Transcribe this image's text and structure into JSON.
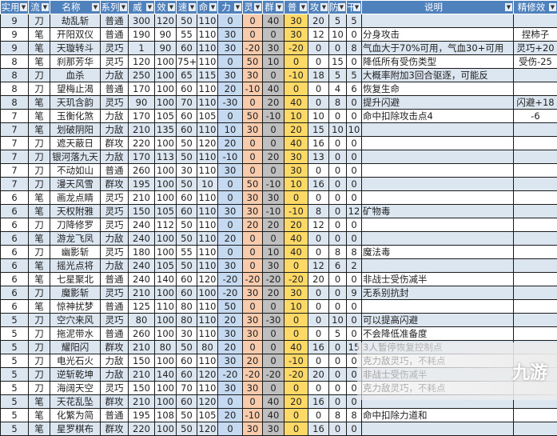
{
  "headers": [
    "实用",
    "流",
    "名称",
    "系列",
    "威",
    "效",
    "速",
    "命",
    "力",
    "灵",
    "群",
    "普",
    "攻",
    "防",
    "干",
    "说明",
    "精修效"
  ],
  "rows": [
    [
      "9",
      "刀",
      "劫乱斩",
      "普通",
      "300",
      "120",
      "50",
      "110",
      "0",
      "0",
      "40",
      "30",
      "20",
      "5",
      "5",
      "",
      ""
    ],
    [
      "9",
      "笔",
      "开阳双仪",
      "普通",
      "190",
      "90",
      "55",
      "110",
      "30",
      "0",
      "0",
      "30",
      "12",
      "10",
      "0",
      "分身攻击",
      "捏柿子"
    ],
    [
      "9",
      "笔",
      "天璇转斗",
      "灵巧",
      "1",
      "90",
      "60",
      "110",
      "30",
      "-20",
      "30",
      "-20",
      "0",
      "0",
      "8",
      "气血大于70%可用，气血30+可用",
      "灵巧+20"
    ],
    [
      "8",
      "笔",
      "刹那芳华",
      "灵巧",
      "120",
      "100",
      "75+",
      "110",
      "0",
      "50",
      "10",
      "0",
      "0",
      "15",
      "0",
      "降低所有受伤类型",
      "受伤-25"
    ],
    [
      "8",
      "刀",
      "血杀",
      "力敌",
      "250",
      "100",
      "65",
      "115",
      "30",
      "30",
      "0",
      "-10",
      "18",
      "5",
      "5",
      "大概率附加3回合驱逐，可能反",
      ""
    ],
    [
      "8",
      "刀",
      "望梅止渴",
      "普通",
      "170",
      "100",
      "60",
      "110",
      "20",
      "-10",
      "40",
      "0",
      "0",
      "4",
      "6",
      "恢复生命",
      ""
    ],
    [
      "8",
      "笔",
      "天玑含韵",
      "灵巧",
      "90",
      "100",
      "70",
      "110",
      "-30",
      "0",
      "20",
      "40",
      "0",
      "8",
      "0",
      "提升闪避",
      "闪避+18"
    ],
    [
      "7",
      "笔",
      "玉衡化煞",
      "力敌",
      "170",
      "105",
      "60",
      "105",
      "0",
      "50",
      "-10",
      "10",
      "10",
      "0",
      "0",
      "命中扣除攻击点4",
      "-6"
    ],
    [
      "7",
      "笔",
      "划破阴阳",
      "力敌",
      "210",
      "135",
      "60",
      "110",
      "10",
      "30",
      "0",
      "20",
      "15",
      "10",
      "10",
      "",
      ""
    ],
    [
      "7",
      "刀",
      "遮天蔽日",
      "群攻",
      "220",
      "100",
      "50",
      "120",
      "20",
      "0",
      "0",
      "40",
      "16",
      "0",
      "0",
      "",
      ""
    ],
    [
      "7",
      "刀",
      "银河落九天",
      "力敌",
      "170",
      "113",
      "50",
      "110",
      "-10",
      "0",
      "20",
      "30",
      "13",
      "0",
      "0",
      "",
      ""
    ],
    [
      "7",
      "刀",
      "不动如山",
      "普通",
      "260",
      "100",
      "30",
      "110",
      "30",
      "0",
      "0",
      "30",
      "0",
      "0",
      "0",
      "",
      ""
    ],
    [
      "7",
      "刀",
      "漫天风雪",
      "群攻",
      "195",
      "100",
      "50",
      "10",
      "0",
      "50",
      "-10",
      "10",
      "16",
      "0",
      "0",
      "",
      ""
    ],
    [
      "6",
      "笔",
      "画龙点睛",
      "灵巧",
      "210",
      "100",
      "60",
      "110",
      "0",
      "30",
      "30",
      "0",
      "0",
      "0",
      "0",
      "",
      ""
    ],
    [
      "6",
      "笔",
      "天权附雅",
      "灵巧",
      "150",
      "105",
      "60",
      "110",
      "30",
      "30",
      "-10",
      "-10",
      "8",
      "0",
      "12",
      "矿物毒",
      ""
    ],
    [
      "6",
      "刀",
      "刀降修罗",
      "灵巧",
      "240",
      "112",
      "50",
      "110",
      "0",
      "20",
      "20",
      "20",
      "12",
      "0",
      "0",
      "",
      ""
    ],
    [
      "6",
      "笔",
      "游龙飞凤",
      "力敌",
      "240",
      "100",
      "50",
      "110",
      "20",
      "0",
      "0",
      "40",
      "0",
      "0",
      "0",
      "",
      ""
    ],
    [
      "6",
      "刀",
      "幽影斩",
      "灵巧",
      "180",
      "100",
      "55",
      "110",
      "0",
      "0",
      "10",
      "40",
      "0",
      "8",
      "8",
      "魔法毒",
      ""
    ],
    [
      "6",
      "笔",
      "摇光点将",
      "力敌",
      "240",
      "105",
      "50",
      "110",
      "30",
      "0",
      "30",
      "0",
      "12",
      "6",
      "2",
      "",
      ""
    ],
    [
      "6",
      "笔",
      "七星聚北",
      "普通",
      "240",
      "140",
      "60",
      "120",
      "-20",
      "-20",
      "-20",
      "-20",
      "20",
      "0",
      "0",
      "非战士受伤减半",
      ""
    ],
    [
      "6",
      "刀",
      "魔影斩",
      "灵巧",
      "210",
      "100",
      "60",
      "100",
      "-20",
      "30",
      "20",
      "30",
      "0",
      "0",
      "9",
      "无系别抗封",
      ""
    ],
    [
      "6",
      "笔",
      "惊神扰梦",
      "普通",
      "125",
      "110",
      "80",
      "110",
      "50",
      "0",
      "0",
      "10",
      "0",
      "0",
      "0",
      "",
      ""
    ],
    [
      "5",
      "刀",
      "空穴来风",
      "灵巧",
      "80",
      "100",
      "80",
      "110",
      "20",
      "30",
      "-30",
      "0",
      "0",
      "10",
      "0",
      "可以提高闪避",
      ""
    ],
    [
      "5",
      "刀",
      "拖泥带水",
      "普通",
      "260",
      "100",
      "30",
      "110",
      "30",
      "30",
      "0",
      "0",
      "0",
      "5",
      "0",
      "不会降低准备度",
      ""
    ],
    [
      "5",
      "刀",
      "耀阳闪",
      "群攻",
      "210",
      "80",
      "50",
      "80",
      "20",
      "0",
      "0",
      "40",
      "16",
      "0",
      "15",
      "3人暂停恢复控制点",
      ""
    ],
    [
      "5",
      "刀",
      "电光石火",
      "力敌",
      "150",
      "100",
      "60",
      "110",
      "30",
      "20",
      "0",
      "-10",
      "0",
      "0",
      "0",
      "克力敌灵巧，不耗点",
      ""
    ],
    [
      "5",
      "刀",
      "逆斩乾坤",
      "力敌",
      "210",
      "140",
      "60",
      "120",
      "-20",
      "-20",
      "-20",
      "-20",
      "20",
      "0",
      "0",
      "非战士受伤减半",
      ""
    ],
    [
      "5",
      "刀",
      "海阔天空",
      "灵巧",
      "150",
      "100",
      "70",
      "110",
      "30",
      "30",
      "0",
      "0",
      "0",
      "0",
      "0",
      "克力敌灵巧，不耗点",
      ""
    ],
    [
      "5",
      "笔",
      "天花乱坠",
      "群攻",
      "210",
      "100",
      "60",
      "120",
      "0",
      "0",
      "40",
      "20",
      "16",
      "0",
      "0",
      "",
      ""
    ],
    [
      "5",
      "笔",
      "化繁为简",
      "普通",
      "195",
      "108",
      "50",
      "105",
      "20",
      "-10",
      "40",
      "0",
      "0",
      "8",
      "8",
      "命中扣除力道和",
      ""
    ],
    [
      "5",
      "笔",
      "星罗棋布",
      "群攻",
      "220",
      "100",
      "50",
      "120",
      "0",
      "30",
      "30",
      "0",
      "16",
      "0",
      "0",
      "",
      ""
    ]
  ],
  "watermark": "九游",
  "colors": {
    "header": "#4f81bd",
    "alt_row": "#dce6f1",
    "li": "#c5d9f1",
    "ling": "#f8cbad",
    "qun": "#bfbfbf",
    "pu": "#ffd966"
  }
}
